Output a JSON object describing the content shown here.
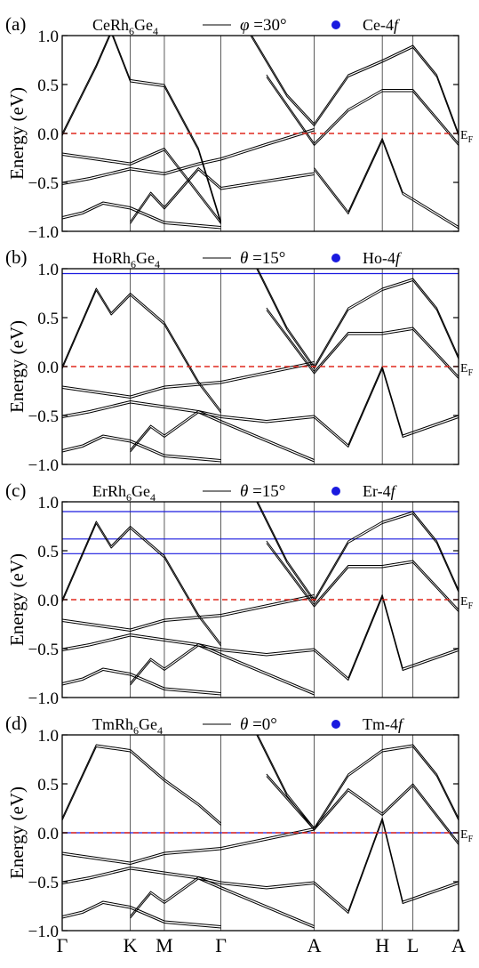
{
  "figure": {
    "ylabel": "Energy (eV)",
    "fermi_label": "E",
    "fermi_sub": "F",
    "kpath": [
      "Γ",
      "K",
      "M",
      "Γ",
      "A",
      "H",
      "L",
      "A"
    ],
    "kpos": [
      0,
      1,
      1.5,
      2.33,
      3.7,
      4.7,
      5.15,
      5.82
    ],
    "ylim": [
      -1.0,
      1.0
    ],
    "yticks": [
      "1.0",
      "0.5",
      "0.0",
      "−0.5",
      "−1.0"
    ],
    "band_color": "#000000",
    "orbital_color": "#1a1adf",
    "fermi_color": "#e0281e"
  },
  "panels": [
    {
      "tag": "(a)",
      "compound": {
        "base1": "CeRh",
        "sub1": "6",
        "base2": "Ge",
        "sub2": "4"
      },
      "angle_symbol": "φ",
      "angle_value": " =30°",
      "orbital_label": "Ce-4",
      "orbital_suffix": "f",
      "chart_data": {
        "type": "line",
        "x_labels": [
          "Γ",
          "K",
          "M",
          "Γ",
          "A",
          "H",
          "L",
          "A"
        ],
        "ylim": [
          -1.0,
          1.0
        ],
        "ylabel": "Energy (eV)",
        "fermi_level": 0.0,
        "flat_f_bands": [],
        "series": [
          {
            "k": [
              0,
              0.5,
              0.72,
              1,
              1.5,
              2.0,
              2.33
            ],
            "E": [
              0.0,
              0.7,
              1.05,
              0.55,
              0.5,
              -0.15,
              -0.9
            ]
          },
          {
            "k": [
              0,
              0.5,
              1,
              1.5,
              2.33
            ],
            "E": [
              -0.2,
              -0.25,
              -0.3,
              -0.15,
              -0.9
            ]
          },
          {
            "k": [
              0,
              0.4,
              1,
              1.5,
              2.0,
              2.33,
              3.0,
              3.7
            ],
            "E": [
              -0.5,
              -0.45,
              -0.35,
              -0.4,
              -0.3,
              -0.25,
              -0.1,
              0.05
            ]
          },
          {
            "k": [
              0,
              0.3,
              0.6,
              1,
              1.5,
              2.33
            ],
            "E": [
              -0.85,
              -0.8,
              -0.7,
              -0.75,
              -0.9,
              -0.95
            ]
          },
          {
            "k": [
              2.7,
              3.3,
              3.7,
              4.2,
              4.7,
              5.15,
              5.5,
              5.82
            ],
            "E": [
              1.1,
              0.4,
              0.1,
              0.6,
              0.75,
              0.9,
              0.6,
              0.0
            ]
          },
          {
            "k": [
              3.0,
              3.7,
              4.2,
              4.7,
              5.15,
              5.82
            ],
            "E": [
              0.6,
              -0.1,
              0.25,
              0.45,
              0.45,
              -0.1
            ]
          },
          {
            "k": [
              3.7,
              4.2,
              4.7,
              5.0,
              5.82
            ],
            "E": [
              -0.35,
              -0.8,
              -0.05,
              -0.6,
              -0.95
            ]
          },
          {
            "k": [
              1.0,
              1.3,
              1.5,
              2.0,
              2.33,
              3.7
            ],
            "E": [
              -0.9,
              -0.6,
              -0.75,
              -0.35,
              -0.55,
              -0.4
            ]
          }
        ]
      }
    },
    {
      "tag": "(b)",
      "compound": {
        "base1": "HoRh",
        "sub1": "6",
        "base2": "Ge",
        "sub2": "4"
      },
      "angle_symbol": "θ",
      "angle_value": " =15°",
      "orbital_label": "Ho-4",
      "orbital_suffix": "f",
      "chart_data": {
        "type": "line",
        "x_labels": [
          "Γ",
          "K",
          "M",
          "Γ",
          "A",
          "H",
          "L",
          "A"
        ],
        "ylim": [
          -1.0,
          1.0
        ],
        "ylabel": "Energy (eV)",
        "fermi_level": 0.0,
        "flat_f_bands": [
          0.95
        ],
        "series": [
          {
            "k": [
              0,
              0.5,
              0.72,
              1,
              1.5,
              2.0,
              2.33
            ],
            "E": [
              0.0,
              0.8,
              0.55,
              0.75,
              0.45,
              -0.15,
              -0.45
            ]
          },
          {
            "k": [
              0,
              0.5,
              1,
              1.5,
              2.33,
              3.7
            ],
            "E": [
              -0.2,
              -0.25,
              -0.3,
              -0.2,
              -0.15,
              0.05
            ]
          },
          {
            "k": [
              0,
              0.4,
              1,
              1.5,
              2.0,
              2.33,
              3.0,
              3.7
            ],
            "E": [
              -0.5,
              -0.45,
              -0.35,
              -0.4,
              -0.45,
              -0.5,
              -0.55,
              -0.5
            ]
          },
          {
            "k": [
              0,
              0.3,
              0.6,
              1,
              1.5,
              2.33
            ],
            "E": [
              -0.85,
              -0.8,
              -0.7,
              -0.75,
              -0.9,
              -0.95
            ]
          },
          {
            "k": [
              2.8,
              3.3,
              3.7,
              4.2,
              4.7,
              5.15,
              5.5,
              5.82
            ],
            "E": [
              1.1,
              0.4,
              0.0,
              0.6,
              0.8,
              0.9,
              0.6,
              0.1
            ]
          },
          {
            "k": [
              3.0,
              3.7,
              4.2,
              4.7,
              5.15,
              5.82
            ],
            "E": [
              0.6,
              -0.05,
              0.35,
              0.35,
              0.4,
              -0.1
            ]
          },
          {
            "k": [
              3.7,
              4.2,
              4.7,
              5.0,
              5.82
            ],
            "E": [
              -0.5,
              -0.8,
              0.0,
              -0.7,
              -0.5
            ]
          },
          {
            "k": [
              1.0,
              1.3,
              1.5,
              2.0,
              2.33,
              3.7
            ],
            "E": [
              -0.85,
              -0.6,
              -0.7,
              -0.45,
              -0.55,
              -0.95
            ]
          }
        ]
      }
    },
    {
      "tag": "(c)",
      "compound": {
        "base1": "ErRh",
        "sub1": "6",
        "base2": "Ge",
        "sub2": "4"
      },
      "angle_symbol": "θ",
      "angle_value": " =15°",
      "orbital_label": "Er-4",
      "orbital_suffix": "f",
      "chart_data": {
        "type": "line",
        "x_labels": [
          "Γ",
          "K",
          "M",
          "Γ",
          "A",
          "H",
          "L",
          "A"
        ],
        "ylim": [
          -1.0,
          1.0
        ],
        "ylabel": "Energy (eV)",
        "fermi_level": 0.0,
        "flat_f_bands": [
          0.9,
          0.62,
          0.47
        ],
        "series": [
          {
            "k": [
              0,
              0.5,
              0.72,
              1,
              1.5,
              2.0,
              2.33
            ],
            "E": [
              0.0,
              0.8,
              0.55,
              0.75,
              0.45,
              -0.15,
              -0.45
            ]
          },
          {
            "k": [
              0,
              0.5,
              1,
              1.5,
              2.33,
              3.7
            ],
            "E": [
              -0.2,
              -0.25,
              -0.3,
              -0.2,
              -0.15,
              0.05
            ]
          },
          {
            "k": [
              0,
              0.4,
              1,
              1.5,
              2.0,
              2.33,
              3.0,
              3.7
            ],
            "E": [
              -0.5,
              -0.45,
              -0.35,
              -0.4,
              -0.45,
              -0.5,
              -0.55,
              -0.5
            ]
          },
          {
            "k": [
              0,
              0.3,
              0.6,
              1,
              1.5,
              2.33
            ],
            "E": [
              -0.85,
              -0.8,
              -0.7,
              -0.75,
              -0.9,
              -0.95
            ]
          },
          {
            "k": [
              2.8,
              3.3,
              3.7,
              4.2,
              4.7,
              5.15,
              5.5,
              5.82
            ],
            "E": [
              1.1,
              0.4,
              0.0,
              0.6,
              0.8,
              0.9,
              0.6,
              0.1
            ]
          },
          {
            "k": [
              3.0,
              3.7,
              4.2,
              4.7,
              5.15,
              5.82
            ],
            "E": [
              0.6,
              -0.05,
              0.35,
              0.35,
              0.4,
              -0.1
            ]
          },
          {
            "k": [
              3.7,
              4.2,
              4.7,
              5.0,
              5.82
            ],
            "E": [
              -0.5,
              -0.8,
              0.05,
              -0.7,
              -0.5
            ]
          },
          {
            "k": [
              1.0,
              1.3,
              1.5,
              2.0,
              2.33,
              3.7
            ],
            "E": [
              -0.85,
              -0.6,
              -0.7,
              -0.45,
              -0.55,
              -0.95
            ]
          }
        ]
      }
    },
    {
      "tag": "(d)",
      "compound": {
        "base1": "TmRh",
        "sub1": "6",
        "base2": "Ge",
        "sub2": "4"
      },
      "angle_symbol": "θ",
      "angle_value": " =0°",
      "orbital_label": "Tm-4",
      "orbital_suffix": "f",
      "chart_data": {
        "type": "line",
        "x_labels": [
          "Γ",
          "K",
          "M",
          "Γ",
          "A",
          "H",
          "L",
          "A"
        ],
        "ylim": [
          -1.0,
          1.0
        ],
        "ylabel": "Energy (eV)",
        "fermi_level": 0.0,
        "flat_f_bands": [
          0.0
        ],
        "series": [
          {
            "k": [
              0,
              0.5,
              1,
              1.5,
              2.0,
              2.33
            ],
            "E": [
              0.15,
              0.9,
              0.85,
              0.55,
              0.3,
              0.1
            ]
          },
          {
            "k": [
              0,
              0.5,
              1,
              1.5,
              2.33,
              3.7
            ],
            "E": [
              -0.2,
              -0.25,
              -0.3,
              -0.2,
              -0.15,
              0.05
            ]
          },
          {
            "k": [
              0,
              0.4,
              1,
              1.5,
              2.0,
              2.33,
              3.0,
              3.7
            ],
            "E": [
              -0.5,
              -0.45,
              -0.35,
              -0.4,
              -0.45,
              -0.5,
              -0.55,
              -0.5
            ]
          },
          {
            "k": [
              0,
              0.3,
              0.6,
              1,
              1.5,
              2.33
            ],
            "E": [
              -0.85,
              -0.8,
              -0.7,
              -0.75,
              -0.9,
              -0.95
            ]
          },
          {
            "k": [
              2.8,
              3.3,
              3.7,
              4.2,
              4.7,
              5.15,
              5.5,
              5.82
            ],
            "E": [
              1.1,
              0.4,
              0.05,
              0.6,
              0.85,
              0.9,
              0.6,
              0.15
            ]
          },
          {
            "k": [
              3.0,
              3.7,
              4.2,
              4.7,
              5.15,
              5.82
            ],
            "E": [
              0.6,
              0.05,
              0.45,
              0.2,
              0.5,
              -0.1
            ]
          },
          {
            "k": [
              3.7,
              4.2,
              4.7,
              5.0,
              5.82
            ],
            "E": [
              -0.5,
              -0.8,
              0.15,
              -0.7,
              -0.5
            ]
          },
          {
            "k": [
              1.0,
              1.3,
              1.5,
              2.0,
              2.33,
              3.7
            ],
            "E": [
              -0.85,
              -0.6,
              -0.7,
              -0.45,
              -0.55,
              -0.95
            ]
          }
        ]
      }
    }
  ]
}
